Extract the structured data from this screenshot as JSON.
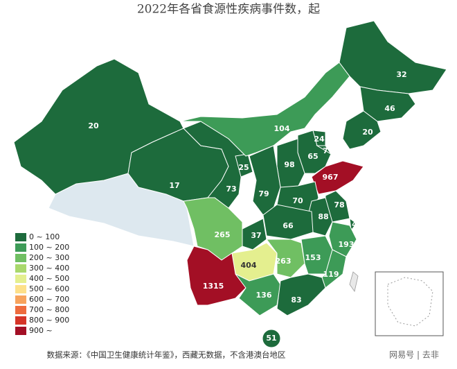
{
  "title": "2022年各省食源性疾病事件数，起",
  "legend": [
    {
      "label": "0 ~ 100",
      "min": 0,
      "color": "#1d6b3c"
    },
    {
      "label": "100 ~ 200",
      "min": 100,
      "color": "#3d9b57"
    },
    {
      "label": "200 ~ 300",
      "min": 200,
      "color": "#70bf63"
    },
    {
      "label": "300 ~ 400",
      "min": 300,
      "color": "#a9d86c"
    },
    {
      "label": "400 ~ 500",
      "min": 400,
      "color": "#e4ef8f"
    },
    {
      "label": "500 ~ 600",
      "min": 500,
      "color": "#fde08a"
    },
    {
      "label": "600 ~ 700",
      "min": 600,
      "color": "#f7a35d"
    },
    {
      "label": "700 ~ 800",
      "min": 700,
      "color": "#ee6b3d"
    },
    {
      "label": "800 ~ 900",
      "min": 800,
      "color": "#d53427"
    },
    {
      "label": "900 ~",
      "min": 900,
      "color": "#a30f25"
    }
  ],
  "regions": [
    {
      "value": 20
    },
    {
      "value": 17
    },
    {
      "value": 73
    },
    {
      "value": 25
    },
    {
      "value": 104
    },
    {
      "value": 32
    },
    {
      "value": 46
    },
    {
      "value": 20
    },
    {
      "value": 65
    },
    {
      "value": 24
    },
    {
      "value": 7
    },
    {
      "value": 98
    },
    {
      "value": 79
    },
    {
      "value": 967
    },
    {
      "value": 70
    },
    {
      "value": 78
    },
    {
      "value": 88
    },
    {
      "value": 4
    },
    {
      "value": 193
    },
    {
      "value": 66
    },
    {
      "value": 37
    },
    {
      "value": 265
    },
    {
      "value": 404
    },
    {
      "value": 263
    },
    {
      "value": 153
    },
    {
      "value": 119
    },
    {
      "value": 1315
    },
    {
      "value": 136
    },
    {
      "value": 83
    },
    {
      "value": 51
    }
  ],
  "footnote": "数据来源：《中国卫生健康统计年鉴》，西藏无数据，不含港澳台地区",
  "watermark": "网易号 | 去非"
}
